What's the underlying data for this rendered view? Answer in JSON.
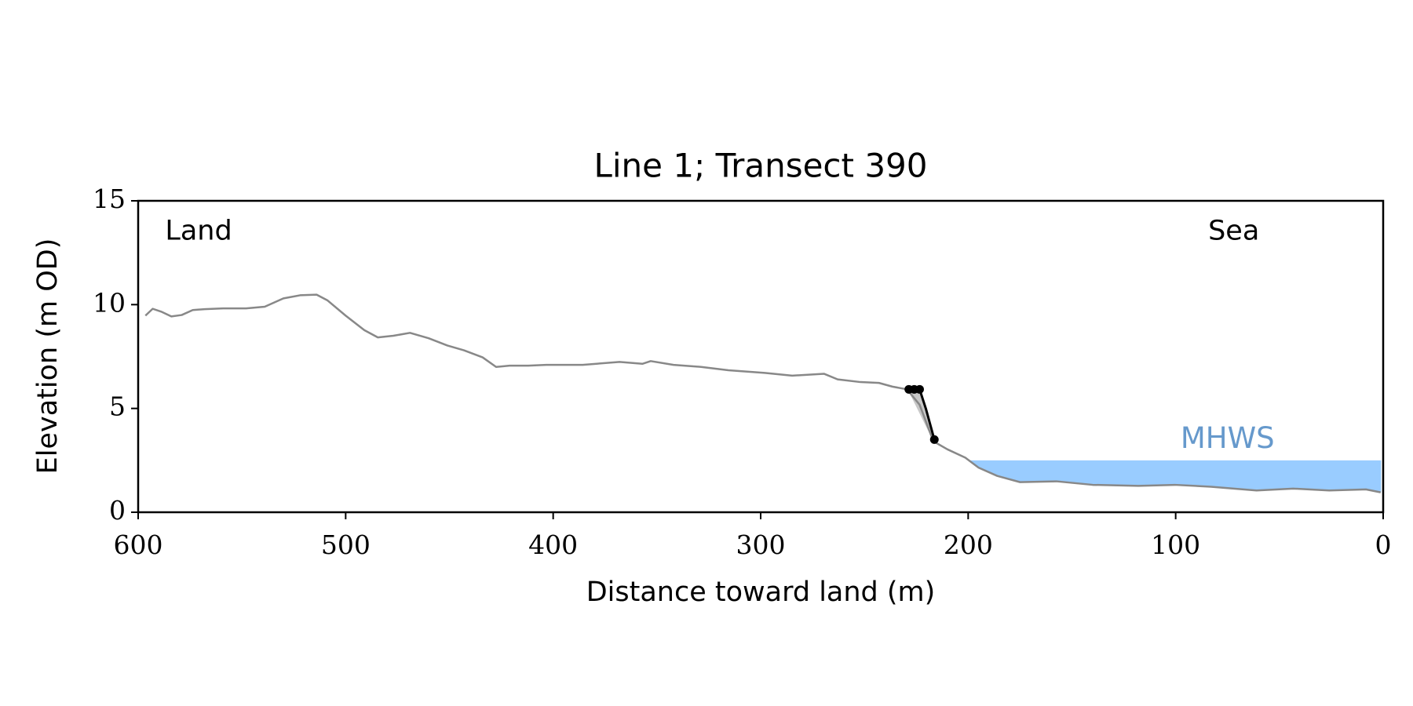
{
  "chart_data": {
    "type": "line",
    "title": "Line 1; Transect 390",
    "x_label": "Distance toward land (m)",
    "y_label": "Elevation (m OD)",
    "xlim": [
      600,
      0
    ],
    "ylim": [
      0,
      15
    ],
    "xticks": [
      600,
      500,
      400,
      300,
      200,
      100,
      0
    ],
    "yticks": [
      0,
      5,
      10,
      15
    ],
    "annotations": [
      {
        "text": "Land",
        "x": 587,
        "y": 13.5
      },
      {
        "text": "Sea",
        "x": 72,
        "y": 13.5
      }
    ],
    "profile": {
      "color": "#888888",
      "x": [
        596.5,
        593,
        588.6,
        584,
        579,
        573.7,
        568,
        559,
        548,
        539,
        530,
        522,
        514,
        508.7,
        500,
        491,
        484.5,
        477,
        469,
        460,
        451,
        443,
        434,
        427.5,
        421,
        412,
        403.3,
        385.8,
        368,
        357,
        353,
        342,
        328.7,
        315.5,
        298,
        284.8,
        269.5,
        262.9,
        251.9,
        243,
        236.5,
        229.5,
        223.4,
        216.8,
        210,
        201.4,
        195,
        186,
        175,
        157.5,
        140,
        118,
        100.4,
        83,
        61,
        43.4,
        26,
        8.3,
        1.2
      ],
      "y": [
        9.47,
        9.8,
        9.65,
        9.43,
        9.5,
        9.74,
        9.78,
        9.82,
        9.82,
        9.9,
        10.3,
        10.45,
        10.48,
        10.2,
        9.47,
        8.77,
        8.42,
        8.5,
        8.64,
        8.38,
        8.03,
        7.8,
        7.46,
        7.0,
        7.06,
        7.06,
        7.1,
        7.1,
        7.24,
        7.15,
        7.28,
        7.1,
        7.0,
        6.84,
        6.71,
        6.58,
        6.67,
        6.4,
        6.27,
        6.23,
        6.05,
        5.92,
        5.18,
        3.42,
        3.03,
        2.63,
        2.15,
        1.75,
        1.45,
        1.49,
        1.32,
        1.27,
        1.32,
        1.23,
        1.05,
        1.14,
        1.05,
        1.1,
        0.96
      ]
    },
    "cliff": {
      "color": "#000000",
      "fill": "#c8c8c8",
      "x": [
        228.6,
        223.4,
        220.3,
        216.3
      ],
      "y": [
        5.92,
        5.92,
        4.96,
        3.5
      ]
    },
    "cliff_points": {
      "color": "#000000",
      "x": [
        228.6,
        226,
        223.4,
        216.3
      ],
      "y": [
        5.92,
        5.92,
        5.92,
        3.5
      ]
    },
    "mhws": {
      "label": "MHWS",
      "value": 2.5,
      "x_range": [
        199,
        1
      ],
      "color": "#99ccff",
      "label_color": "#6699cc",
      "label_x": 75,
      "label_y": 3.5
    }
  }
}
